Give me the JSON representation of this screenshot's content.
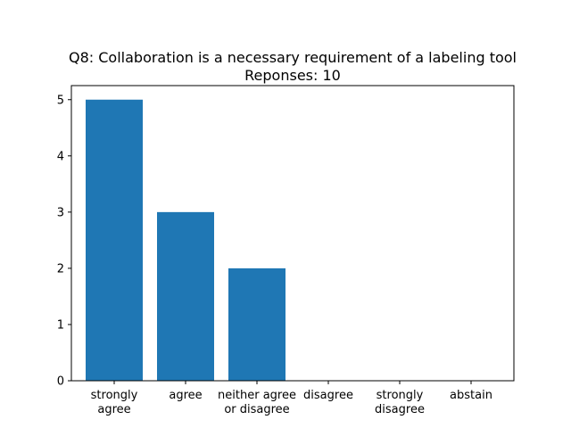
{
  "chart_data": {
    "type": "bar",
    "title": "Q8: Collaboration is a necessary requirement of a labeling tool",
    "subtitle": "Reponses: 10",
    "categories": [
      [
        "strongly",
        "agree"
      ],
      [
        "agree"
      ],
      [
        "neither agree",
        "or disagree"
      ],
      [
        "disagree"
      ],
      [
        "strongly",
        "disagree"
      ],
      [
        "abstain"
      ]
    ],
    "values": [
      5,
      3,
      2,
      0,
      0,
      0
    ],
    "yticks": [
      "0",
      "1",
      "2",
      "3",
      "4",
      "5"
    ],
    "ylim": [
      0,
      5.25
    ],
    "bar_color": "#1f77b4",
    "grid": false,
    "xlabel": "",
    "ylabel": ""
  }
}
